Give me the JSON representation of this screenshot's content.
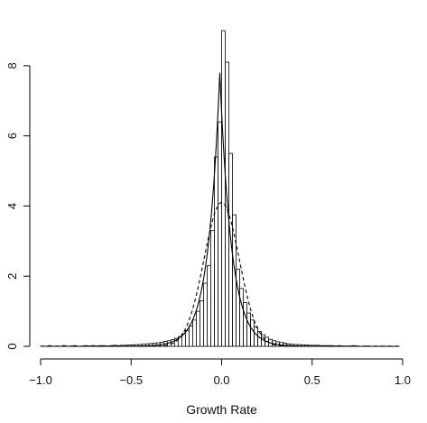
{
  "chart_data": {
    "type": "histogram",
    "xlabel": "Growth Rate",
    "ylabel": "",
    "xlim": [
      -1.0,
      1.0
    ],
    "ylim": [
      0,
      9
    ],
    "xticks": [
      -1.0,
      -0.5,
      0.0,
      0.5,
      1.0
    ],
    "xtick_labels": [
      "−1.0",
      "−0.5",
      "0.0",
      "0.5",
      "1.0"
    ],
    "yticks": [
      0,
      2,
      4,
      6,
      8
    ],
    "ytick_labels": [
      "0",
      "2",
      "4",
      "6",
      "8"
    ],
    "grid": false,
    "bin_width": 0.02,
    "bins": [
      {
        "x0": -1.0,
        "density": 0.01
      },
      {
        "x0": -0.98,
        "density": 0.0
      },
      {
        "x0": -0.96,
        "density": 0.02
      },
      {
        "x0": -0.94,
        "density": 0.0
      },
      {
        "x0": -0.92,
        "density": 0.01
      },
      {
        "x0": -0.9,
        "density": 0.0
      },
      {
        "x0": -0.88,
        "density": 0.02
      },
      {
        "x0": -0.86,
        "density": 0.0
      },
      {
        "x0": -0.84,
        "density": 0.01
      },
      {
        "x0": -0.82,
        "density": 0.02
      },
      {
        "x0": -0.8,
        "density": 0.0
      },
      {
        "x0": -0.78,
        "density": 0.01
      },
      {
        "x0": -0.76,
        "density": 0.02
      },
      {
        "x0": -0.74,
        "density": 0.01
      },
      {
        "x0": -0.72,
        "density": 0.02
      },
      {
        "x0": -0.7,
        "density": 0.01
      },
      {
        "x0": -0.68,
        "density": 0.02
      },
      {
        "x0": -0.66,
        "density": 0.02
      },
      {
        "x0": -0.64,
        "density": 0.01
      },
      {
        "x0": -0.62,
        "density": 0.02
      },
      {
        "x0": -0.6,
        "density": 0.03
      },
      {
        "x0": -0.58,
        "density": 0.02
      },
      {
        "x0": -0.56,
        "density": 0.03
      },
      {
        "x0": -0.54,
        "density": 0.03
      },
      {
        "x0": -0.52,
        "density": 0.04
      },
      {
        "x0": -0.5,
        "density": 0.04
      },
      {
        "x0": -0.48,
        "density": 0.05
      },
      {
        "x0": -0.46,
        "density": 0.05
      },
      {
        "x0": -0.44,
        "density": 0.06
      },
      {
        "x0": -0.42,
        "density": 0.07
      },
      {
        "x0": -0.4,
        "density": 0.08
      },
      {
        "x0": -0.38,
        "density": 0.09
      },
      {
        "x0": -0.36,
        "density": 0.1
      },
      {
        "x0": -0.34,
        "density": 0.12
      },
      {
        "x0": -0.32,
        "density": 0.14
      },
      {
        "x0": -0.3,
        "density": 0.16
      },
      {
        "x0": -0.28,
        "density": 0.19
      },
      {
        "x0": -0.26,
        "density": 0.23
      },
      {
        "x0": -0.24,
        "density": 0.28
      },
      {
        "x0": -0.22,
        "density": 0.36
      },
      {
        "x0": -0.2,
        "density": 0.45
      },
      {
        "x0": -0.18,
        "density": 0.58
      },
      {
        "x0": -0.16,
        "density": 0.75
      },
      {
        "x0": -0.14,
        "density": 1.0
      },
      {
        "x0": -0.12,
        "density": 1.3
      },
      {
        "x0": -0.1,
        "density": 1.8
      },
      {
        "x0": -0.08,
        "density": 2.3
      },
      {
        "x0": -0.06,
        "density": 3.3
      },
      {
        "x0": -0.04,
        "density": 5.4
      },
      {
        "x0": -0.02,
        "density": 6.4
      },
      {
        "x0": 0.0,
        "density": 9.0
      },
      {
        "x0": 0.02,
        "density": 8.1
      },
      {
        "x0": 0.04,
        "density": 5.5
      },
      {
        "x0": 0.06,
        "density": 3.75
      },
      {
        "x0": 0.08,
        "density": 2.2
      },
      {
        "x0": 0.1,
        "density": 1.65
      },
      {
        "x0": 0.12,
        "density": 1.25
      },
      {
        "x0": 0.14,
        "density": 0.95
      },
      {
        "x0": 0.16,
        "density": 0.75
      },
      {
        "x0": 0.18,
        "density": 0.55
      },
      {
        "x0": 0.2,
        "density": 0.42
      },
      {
        "x0": 0.22,
        "density": 0.33
      },
      {
        "x0": 0.24,
        "density": 0.26
      },
      {
        "x0": 0.26,
        "density": 0.2
      },
      {
        "x0": 0.28,
        "density": 0.16
      },
      {
        "x0": 0.3,
        "density": 0.13
      },
      {
        "x0": 0.32,
        "density": 0.11
      },
      {
        "x0": 0.34,
        "density": 0.09
      },
      {
        "x0": 0.36,
        "density": 0.07
      },
      {
        "x0": 0.38,
        "density": 0.06
      },
      {
        "x0": 0.4,
        "density": 0.05
      },
      {
        "x0": 0.42,
        "density": 0.05
      },
      {
        "x0": 0.44,
        "density": 0.04
      },
      {
        "x0": 0.46,
        "density": 0.04
      },
      {
        "x0": 0.48,
        "density": 0.03
      },
      {
        "x0": 0.5,
        "density": 0.03
      },
      {
        "x0": 0.52,
        "density": 0.03
      },
      {
        "x0": 0.54,
        "density": 0.02
      },
      {
        "x0": 0.56,
        "density": 0.02
      },
      {
        "x0": 0.58,
        "density": 0.02
      },
      {
        "x0": 0.6,
        "density": 0.02
      },
      {
        "x0": 0.62,
        "density": 0.01
      },
      {
        "x0": 0.64,
        "density": 0.02
      },
      {
        "x0": 0.66,
        "density": 0.01
      },
      {
        "x0": 0.68,
        "density": 0.01
      },
      {
        "x0": 0.7,
        "density": 0.01
      },
      {
        "x0": 0.72,
        "density": 0.02
      },
      {
        "x0": 0.74,
        "density": 0.01
      },
      {
        "x0": 0.76,
        "density": 0.0
      },
      {
        "x0": 0.78,
        "density": 0.01
      },
      {
        "x0": 0.8,
        "density": 0.01
      },
      {
        "x0": 0.82,
        "density": 0.0
      },
      {
        "x0": 0.84,
        "density": 0.01
      },
      {
        "x0": 0.86,
        "density": 0.0
      },
      {
        "x0": 0.88,
        "density": 0.01
      },
      {
        "x0": 0.9,
        "density": 0.0
      },
      {
        "x0": 0.92,
        "density": 0.01
      },
      {
        "x0": 0.94,
        "density": 0.0
      },
      {
        "x0": 0.96,
        "density": 0.01
      },
      {
        "x0": 0.98,
        "density": 0.0
      }
    ],
    "curves": [
      {
        "style": "solid",
        "shape": "laplace",
        "center": -0.01,
        "peak": 7.8
      },
      {
        "style": "dashed",
        "shape": "normal",
        "center": 0.0,
        "peak": 4.1
      }
    ],
    "colors": {
      "bar_fill": "#ffffff",
      "bar_stroke": "#000000",
      "line": "#000000"
    }
  }
}
